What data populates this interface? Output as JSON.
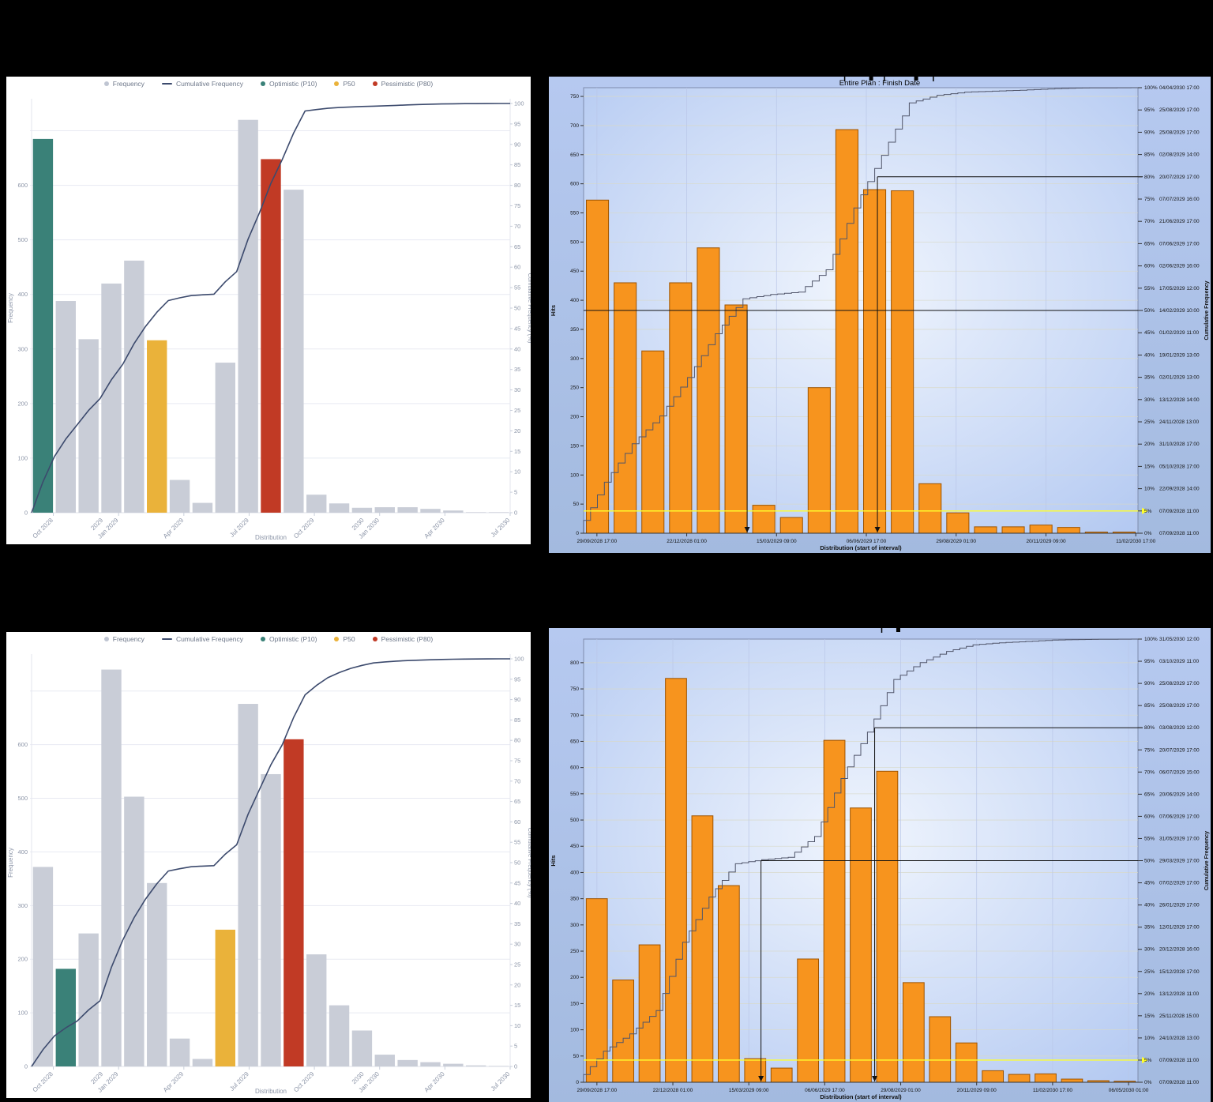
{
  "page": {
    "background": "#000000"
  },
  "colors": {
    "bar_gray": "#c9cdd7",
    "p10_teal": "#3a8178",
    "p50_yellow": "#eab23a",
    "p80_red": "#c13a25",
    "cumulative_navy": "#3c4a6d",
    "web_axis_text": "#8b94a7",
    "web_grid": "#e8eaf2",
    "opra_panel_blue": "#aac1ed",
    "opra_bar_orange": "#f7941e",
    "opra_bar_border": "#9e5400",
    "opra_step_line": "#50556a",
    "opra_marker_black": "#111111",
    "opra_highlight_yellow": "#ffff2e"
  },
  "chart_data": [
    {
      "id": "frequency-histogram-top-left",
      "type": "bar",
      "style": "web",
      "title": "",
      "legend": [
        {
          "label": "Frequency",
          "marker": "dot",
          "color": "#bfc5d2"
        },
        {
          "label": "Cumulative Frequency",
          "marker": "line",
          "color": "#3c4a6d"
        },
        {
          "label": "Optimistic (P10)",
          "marker": "dot",
          "color": "#3a8178"
        },
        {
          "label": "P50",
          "marker": "dot",
          "color": "#eab23a"
        },
        {
          "label": "Pessimistic (P80)",
          "marker": "dot",
          "color": "#c13a25"
        }
      ],
      "xlabel": "Distribution",
      "ylabel": "Frequency",
      "y2label": "Cumulative Frequency (%)",
      "ylim": [
        0,
        750
      ],
      "y_tick_step": 100,
      "y2_tick_step": 5,
      "values": [
        685,
        388,
        318,
        420,
        462,
        316,
        60,
        18,
        275,
        720,
        648,
        592,
        33,
        17,
        9,
        10,
        10,
        7,
        4,
        1,
        1
      ],
      "p10_index": 0,
      "p50_index": 5,
      "p80_index": 10,
      "x_ticks": [
        "Oct 2028",
        "Jan 2029",
        "Apr 2029",
        "Jul 2029",
        "Oct 2029",
        "Jan 2030",
        "Apr 2030",
        "Jul 2030"
      ],
      "x_year_ticks": [
        {
          "label": "2029",
          "before_tick": 1
        },
        {
          "label": "2030",
          "before_tick": 5
        }
      ],
      "grid": true,
      "legend_position": "top"
    },
    {
      "id": "entire-plan-finish-date-top-right",
      "type": "bar",
      "style": "opra",
      "title": "Entire Plan : Finish Date",
      "xlabel": "Distribution (start of interval)",
      "ylabel": "Hits",
      "y2label": "Cumulative Frequency",
      "ylim": [
        0,
        765
      ],
      "y_tick_step": 50,
      "values": [
        572,
        430,
        313,
        430,
        490,
        392,
        48,
        27,
        250,
        693,
        590,
        588,
        85,
        35,
        11,
        11,
        14,
        10,
        2,
        2
      ],
      "x_ticks": [
        "29/09/2028 17:00",
        "22/12/2028 01:00",
        "15/03/2029 09:00",
        "06/06/2029 17:00",
        "29/08/2029 01:00",
        "20/11/2029 09:00",
        "11/02/2030 17:00"
      ],
      "x_tick_start_frac": 0.024,
      "x_tick_step_frac": 0.162,
      "percentiles": [
        {
          "p": 0,
          "d": "07/09/2028 11:00"
        },
        {
          "p": 5,
          "d": "07/09/2028 11:00"
        },
        {
          "p": 10,
          "d": "22/09/2028 14:00"
        },
        {
          "p": 15,
          "d": "05/10/2028 17:00"
        },
        {
          "p": 20,
          "d": "31/10/2028 17:00"
        },
        {
          "p": 25,
          "d": "24/11/2028 13:00"
        },
        {
          "p": 30,
          "d": "13/12/2028 14:00"
        },
        {
          "p": 35,
          "d": "02/01/2029 13:00"
        },
        {
          "p": 40,
          "d": "19/01/2029 13:00"
        },
        {
          "p": 45,
          "d": "01/02/2029 11:00"
        },
        {
          "p": 50,
          "d": "14/02/2029 10:00"
        },
        {
          "p": 55,
          "d": "17/05/2029 12:00"
        },
        {
          "p": 60,
          "d": "02/06/2029 16:00"
        },
        {
          "p": 65,
          "d": "07/06/2029 17:00"
        },
        {
          "p": 70,
          "d": "21/06/2029 17:00"
        },
        {
          "p": 75,
          "d": "07/07/2029 16:00"
        },
        {
          "p": 80,
          "d": "20/07/2029 17:00"
        },
        {
          "p": 85,
          "d": "02/08/2029 14:00"
        },
        {
          "p": 90,
          "d": "25/08/2029 17:00"
        },
        {
          "p": 95,
          "d": "25/08/2029 17:00"
        },
        {
          "p": 100,
          "d": "04/04/2030 17:00"
        }
      ],
      "markers": [
        {
          "p": 50,
          "frac": 0.295,
          "full_width": true
        },
        {
          "p": 80,
          "frac": 0.53,
          "full_width": false
        }
      ],
      "highlight_line_p": 5,
      "top_markers": [
        0.447,
        0.487,
        0.507,
        0.555,
        0.581
      ]
    },
    {
      "id": "frequency-histogram-bottom-left",
      "type": "bar",
      "style": "web",
      "title": "",
      "legend": [
        {
          "label": "Frequency",
          "marker": "dot",
          "color": "#bfc5d2"
        },
        {
          "label": "Cumulative Frequency",
          "marker": "line",
          "color": "#3c4a6d"
        },
        {
          "label": "Optimistic (P10)",
          "marker": "dot",
          "color": "#3a8178"
        },
        {
          "label": "P50",
          "marker": "dot",
          "color": "#eab23a"
        },
        {
          "label": "Pessimistic (P80)",
          "marker": "dot",
          "color": "#c13a25"
        }
      ],
      "xlabel": "Distribution",
      "ylabel": "Frequency",
      "y2label": "Cumulative Frequency (%)",
      "ylim": [
        0,
        760
      ],
      "y_tick_step": 100,
      "y2_tick_step": 5,
      "values": [
        372,
        182,
        248,
        740,
        503,
        342,
        52,
        14,
        255,
        676,
        545,
        610,
        209,
        114,
        67,
        22,
        12,
        8,
        5,
        2,
        1
      ],
      "p10_index": 1,
      "p50_index": 8,
      "p80_index": 11,
      "x_ticks": [
        "Oct 2028",
        "Jan 2029",
        "Apr 2029",
        "Jul 2029",
        "Oct 2029",
        "Jan 2030",
        "Apr 2030",
        "Jul 2030"
      ],
      "x_year_ticks": [
        {
          "label": "2029",
          "before_tick": 1
        },
        {
          "label": "2030",
          "before_tick": 5
        }
      ],
      "grid": true,
      "legend_position": "top"
    },
    {
      "id": "entire-plan-finish-date-bottom-right",
      "type": "bar",
      "style": "opra",
      "title": "",
      "xlabel": "Distribution (start of interval)",
      "ylabel": "Hits",
      "y2label": "Cumulative Frequency",
      "ylim": [
        0,
        845
      ],
      "y_tick_step": 50,
      "values": [
        350,
        195,
        262,
        770,
        508,
        375,
        45,
        27,
        235,
        652,
        523,
        593,
        190,
        125,
        75,
        22,
        15,
        16,
        6,
        3,
        2
      ],
      "x_ticks": [
        "29/09/2028 17:00",
        "22/12/2028 01:00",
        "15/03/2029 09:00",
        "06/06/2029 17:00",
        "29/08/2029 01:00",
        "20/11/2029 09:00",
        "11/02/2030 17:00",
        "06/05/2030 01:00"
      ],
      "x_tick_start_frac": 0.024,
      "x_tick_step_frac": 0.137,
      "percentiles": [
        {
          "p": 0,
          "d": "07/09/2028 11:00"
        },
        {
          "p": 5,
          "d": "07/09/2028 11:00"
        },
        {
          "p": 10,
          "d": "24/10/2028 13:00"
        },
        {
          "p": 15,
          "d": "25/11/2028 15:00"
        },
        {
          "p": 20,
          "d": "13/12/2028 11:00"
        },
        {
          "p": 25,
          "d": "15/12/2028 17:00"
        },
        {
          "p": 30,
          "d": "20/12/2028 16:00"
        },
        {
          "p": 35,
          "d": "12/01/2029 17:00"
        },
        {
          "p": 40,
          "d": "26/01/2029 17:00"
        },
        {
          "p": 45,
          "d": "07/02/2029 17:00"
        },
        {
          "p": 50,
          "d": "29/03/2029 17:00"
        },
        {
          "p": 55,
          "d": "31/05/2029 17:00"
        },
        {
          "p": 60,
          "d": "07/06/2029 17:00"
        },
        {
          "p": 65,
          "d": "20/06/2029 14:00"
        },
        {
          "p": 70,
          "d": "06/07/2029 15:00"
        },
        {
          "p": 75,
          "d": "20/07/2029 17:00"
        },
        {
          "p": 80,
          "d": "03/08/2029 12:00"
        },
        {
          "p": 85,
          "d": "25/08/2029 17:00"
        },
        {
          "p": 90,
          "d": "25/08/2029 17:00"
        },
        {
          "p": 95,
          "d": "03/10/2029 11:00"
        },
        {
          "p": 100,
          "d": "31/05/2030 12:00"
        }
      ],
      "markers": [
        {
          "p": 50,
          "frac": 0.32,
          "full_width": false
        },
        {
          "p": 80,
          "frac": 0.525,
          "full_width": false
        }
      ],
      "highlight_line_p": 5,
      "top_markers": [
        0.503,
        0.528
      ]
    }
  ]
}
